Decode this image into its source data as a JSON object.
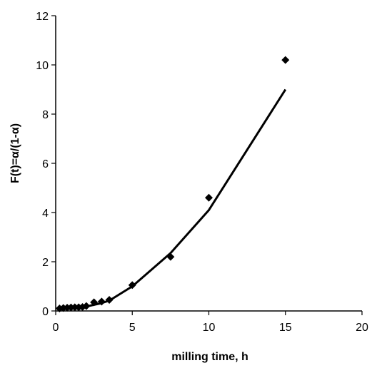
{
  "chart_data": {
    "type": "scatter",
    "title": "",
    "xlabel": "milling time, h",
    "ylabel": "F(t)=α/(1-α)",
    "xlim": [
      0,
      20
    ],
    "ylim": [
      0,
      12
    ],
    "xticks": [
      0,
      5,
      10,
      15,
      20
    ],
    "yticks": [
      0,
      2,
      4,
      6,
      8,
      10,
      12
    ],
    "grid": false,
    "legend": "none",
    "series": [
      {
        "kind": "points",
        "marker": "diamond",
        "color": "#000000",
        "x": [
          0.25,
          0.5,
          0.75,
          1.0,
          1.25,
          1.5,
          1.75,
          2.0,
          2.5,
          3.0,
          3.5,
          5.0,
          7.5,
          10.0,
          15.0
        ],
        "y": [
          0.1,
          0.12,
          0.13,
          0.14,
          0.15,
          0.15,
          0.16,
          0.2,
          0.35,
          0.38,
          0.45,
          1.05,
          2.2,
          4.6,
          10.2
        ]
      },
      {
        "kind": "line",
        "color": "#000000",
        "x": [
          0.25,
          0.5,
          1.0,
          1.5,
          2.0,
          2.5,
          3.0,
          3.5,
          5.0,
          7.5,
          10.0,
          15.0
        ],
        "y": [
          0.07,
          0.09,
          0.11,
          0.13,
          0.18,
          0.25,
          0.32,
          0.42,
          1.0,
          2.35,
          4.1,
          9.0
        ]
      }
    ]
  }
}
